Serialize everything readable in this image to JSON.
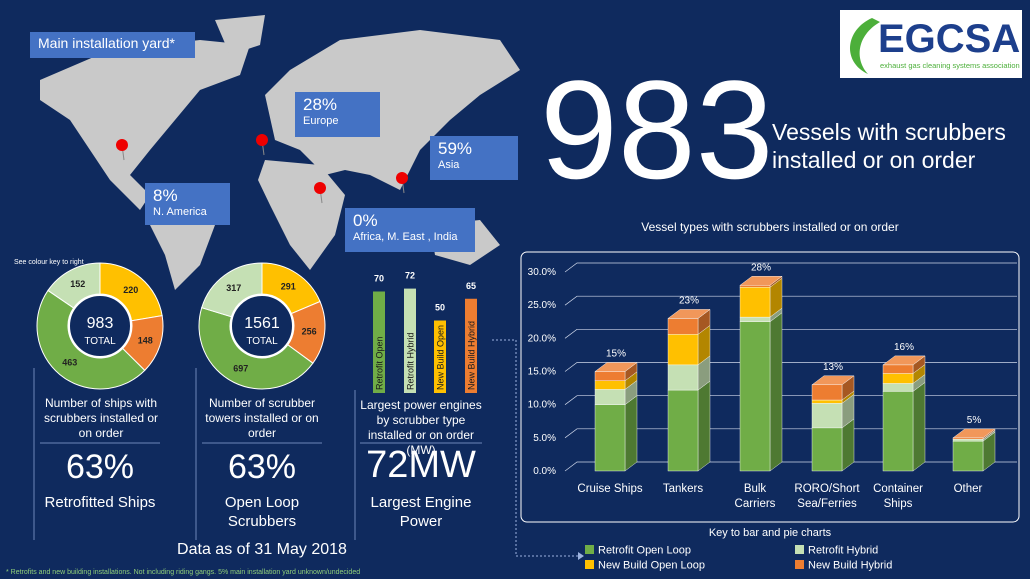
{
  "logo": {
    "name": "EGCSA",
    "tagline": "exhaust gas cleaning systems association"
  },
  "headline": {
    "number": "983",
    "text": "Vessels with scrubbers installed or on order"
  },
  "map": {
    "note": "Main installation yard*",
    "regions": [
      {
        "share": "28%",
        "name": "Europe"
      },
      {
        "share": "59%",
        "name": "Asia"
      },
      {
        "share": "8%",
        "name": "N. America"
      },
      {
        "share": "0%",
        "name": "Africa, M. East , India"
      }
    ]
  },
  "colour_note": "See colour key to right",
  "panels": [
    {
      "caption": "Number of ships with scrubbers installed or on order",
      "stat": "63%",
      "stat_label": "Retrofitted Ships"
    },
    {
      "caption": "Number of scrubber towers installed or on order",
      "stat": "63%",
      "stat_label": "Open Loop Scrubbers"
    },
    {
      "caption": "Largest power engines by scrubber type installed or on order (MW)",
      "stat": "72MW",
      "stat_label": "Largest Engine Power"
    }
  ],
  "date_note": "Data as of 31 May 2018",
  "footnote": "* Retrofits and new building installations. Not including riding gangs. 5% main installation yard unknown/undecided",
  "chart_data": [
    {
      "type": "donut",
      "values": [
        220,
        148,
        463,
        152
      ],
      "colors": [
        "#ffc000",
        "#ed7d31",
        "#70ad47",
        "#c5e0b4"
      ],
      "center_value": 983,
      "center_label": "TOTAL"
    },
    {
      "type": "donut",
      "values": [
        291,
        256,
        697,
        317
      ],
      "colors": [
        "#ffc000",
        "#ed7d31",
        "#70ad47",
        "#c5e0b4"
      ],
      "center_value": 1561,
      "center_label": "TOTAL"
    },
    {
      "type": "bar",
      "categories": [
        "Retrofit Open",
        "Retrofit Hybrid",
        "New Build Open",
        "New Build Hybrid"
      ],
      "values": [
        70,
        72,
        50,
        65
      ],
      "colors": [
        "#70ad47",
        "#c5e0b4",
        "#ffc000",
        "#ed7d31"
      ]
    },
    {
      "type": "stacked_bar_3d",
      "title": "Vessel types with scrubbers installed or on order",
      "categories": [
        "Cruise Ships",
        "Tankers",
        "Bulk Carriers",
        "RORO/Short Sea/Ferries",
        "Container Ships",
        "Other"
      ],
      "series": [
        {
          "name": "Retrofit Open Loop",
          "color": "#70ad47",
          "values": [
            10.0,
            12.2,
            22.5,
            6.5,
            12.0,
            4.5
          ]
        },
        {
          "name": "Retrofit Hybrid",
          "color": "#c5e0b4",
          "values": [
            2.3,
            3.8,
            0.7,
            3.7,
            1.2,
            0.3
          ]
        },
        {
          "name": "New Build Open Loop",
          "color": "#ffc000",
          "values": [
            1.3,
            4.6,
            4.5,
            0.5,
            1.5,
            0
          ]
        },
        {
          "name": "New Build Hybrid",
          "color": "#ed7d31",
          "values": [
            1.4,
            2.4,
            0.3,
            2.3,
            1.3,
            0.2
          ]
        }
      ],
      "totals": {
        "values": [
          15,
          23,
          28,
          13,
          16,
          5
        ],
        "value_labels": [
          "15%",
          "23%",
          "28%",
          "13%",
          "16%",
          "5%"
        ]
      },
      "ylim": [
        0,
        30
      ],
      "yticks": [
        {
          "value": 0,
          "label": "0.0%"
        },
        {
          "value": 5,
          "label": "5.0%"
        },
        {
          "value": 10,
          "label": "10.0%"
        },
        {
          "value": 15,
          "label": "15.0%"
        },
        {
          "value": 20,
          "label": "20.0%"
        },
        {
          "value": 25,
          "label": "25.0%"
        },
        {
          "value": 30,
          "label": "30.0%"
        }
      ],
      "grid": true,
      "legend_title": "Key to bar and pie charts"
    }
  ]
}
